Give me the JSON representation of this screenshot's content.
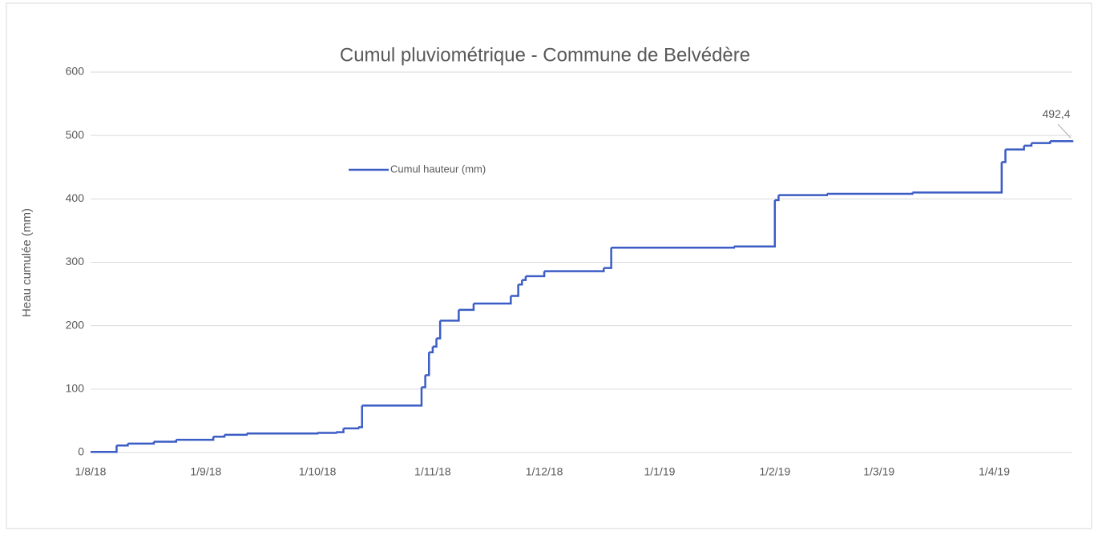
{
  "chart_data": {
    "type": "line",
    "step": true,
    "title": "Cumul pluviométrique - Commune de Belvédère",
    "y_label": "Heau cumulée (mm)",
    "x": [
      "2018-08-01",
      "2018-08-08",
      "2018-08-11",
      "2018-08-18",
      "2018-08-24",
      "2018-09-03",
      "2018-09-06",
      "2018-09-12",
      "2018-10-01",
      "2018-10-06",
      "2018-10-08",
      "2018-10-12",
      "2018-10-13",
      "2018-10-29",
      "2018-10-30",
      "2018-10-31",
      "2018-11-01",
      "2018-11-02",
      "2018-11-03",
      "2018-11-08",
      "2018-11-12",
      "2018-11-22",
      "2018-11-24",
      "2018-11-25",
      "2018-11-26",
      "2018-12-01",
      "2018-12-17",
      "2018-12-19",
      "2019-01-21",
      "2019-02-01",
      "2019-02-02",
      "2019-02-15",
      "2019-03-10",
      "2019-04-03",
      "2019-04-04",
      "2019-04-09",
      "2019-04-11",
      "2019-04-16",
      "2019-04-22"
    ],
    "series": [
      {
        "name": "Cumul hauteur (mm)",
        "color": "#3b5cc4",
        "values": [
          1,
          11,
          14,
          17,
          20,
          25,
          28,
          30,
          31,
          32,
          38,
          40,
          74,
          103,
          122,
          158,
          167,
          180,
          208,
          225,
          235,
          247,
          265,
          272,
          278,
          286,
          291,
          323,
          325,
          398,
          406,
          408,
          410,
          458,
          478,
          484,
          488,
          491,
          492.4
        ],
        "value_labels": [
          null,
          null,
          null,
          null,
          null,
          null,
          null,
          null,
          null,
          null,
          null,
          null,
          null,
          null,
          null,
          null,
          null,
          null,
          null,
          null,
          null,
          null,
          null,
          null,
          null,
          null,
          null,
          null,
          null,
          null,
          null,
          null,
          null,
          null,
          null,
          null,
          null,
          null,
          "492,4"
        ]
      }
    ],
    "xlim": [
      "2018-08-01",
      "2019-04-22"
    ],
    "xticks": [
      {
        "value": "2018-08-01",
        "label": "1/8/18"
      },
      {
        "value": "2018-09-01",
        "label": "1/9/18"
      },
      {
        "value": "2018-10-01",
        "label": "1/10/18"
      },
      {
        "value": "2018-11-01",
        "label": "1/11/18"
      },
      {
        "value": "2018-12-01",
        "label": "1/12/18"
      },
      {
        "value": "2019-01-01",
        "label": "1/1/19"
      },
      {
        "value": "2019-02-01",
        "label": "1/2/19"
      },
      {
        "value": "2019-03-01",
        "label": "1/3/19"
      },
      {
        "value": "2019-04-01",
        "label": "1/4/19"
      }
    ],
    "ylim": [
      0,
      600
    ],
    "yticks": [
      0,
      100,
      200,
      300,
      400,
      500,
      600
    ],
    "grid": true,
    "legend": "upper-left"
  }
}
